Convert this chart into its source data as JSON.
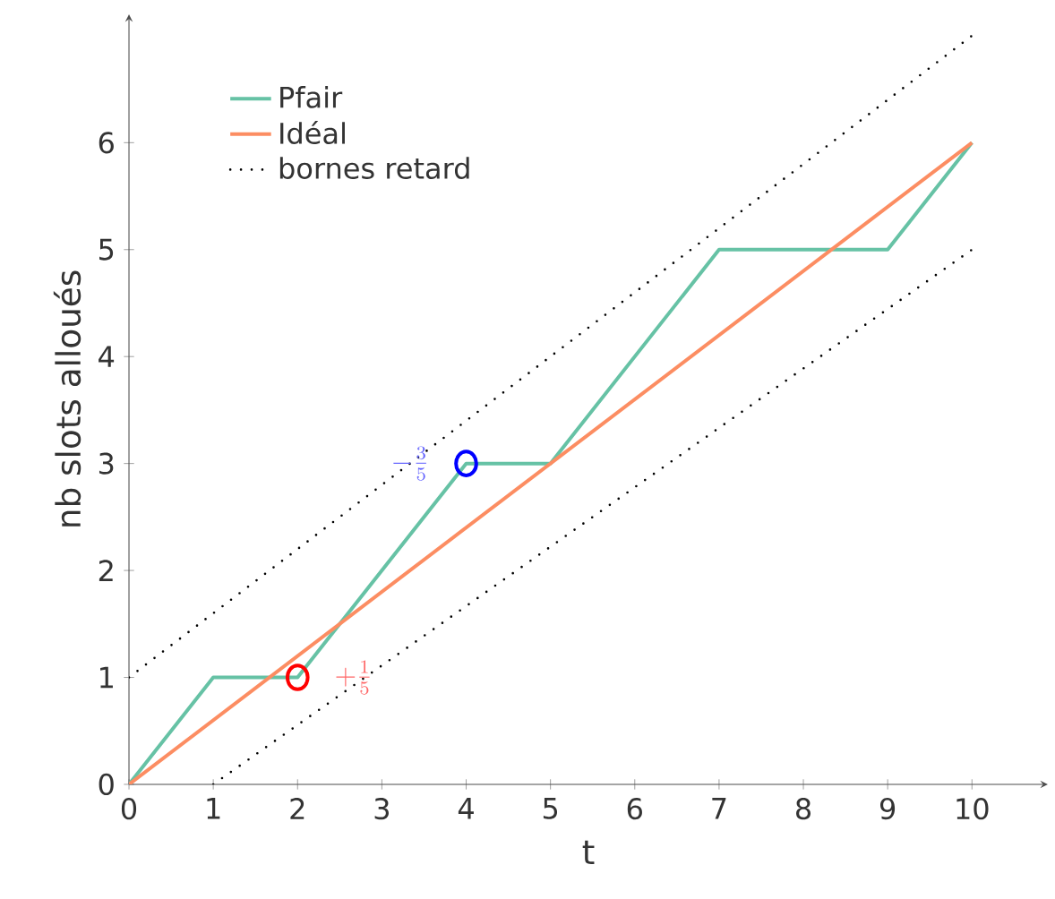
{
  "chart_data": {
    "type": "line",
    "xlabel": "t",
    "ylabel": "nb slots alloués",
    "xlim": [
      0,
      10.9
    ],
    "ylim": [
      0,
      7.2
    ],
    "xticks": [
      0,
      1,
      2,
      3,
      4,
      5,
      6,
      7,
      8,
      9,
      10
    ],
    "yticks": [
      0,
      1,
      2,
      3,
      4,
      5,
      6
    ],
    "grid": false,
    "legend": "top left",
    "series": [
      {
        "name": "Pfair",
        "color": "#66c2a5",
        "line_style": "solid",
        "x": [
          0,
          1,
          2,
          4,
          5,
          7,
          9,
          10
        ],
        "values": [
          0,
          1,
          1,
          3,
          3,
          5,
          5,
          6
        ]
      },
      {
        "name": "Idéal",
        "color": "#fc8d62",
        "line_style": "solid",
        "x": [
          0,
          10
        ],
        "values": [
          0,
          6
        ]
      },
      {
        "name": "bornes retard",
        "color": "#000000",
        "line_style": "dotted",
        "x": [
          0,
          10
        ],
        "values": [
          1,
          7
        ]
      },
      {
        "color": "#000000",
        "line_style": "dotted",
        "x": [
          1,
          10
        ],
        "values": [
          0,
          5
        ]
      },
      {
        "type": "scatter",
        "marker": "circle",
        "color": "#ff0000",
        "x": [
          2
        ],
        "values": [
          1
        ]
      },
      {
        "type": "scatter",
        "marker": "circle",
        "color": "#0000ff",
        "x": [
          4
        ],
        "values": [
          3
        ]
      }
    ],
    "annotations": [
      {
        "text": "+\\frac{1}{5}",
        "x": 2,
        "y": 1
      },
      {
        "text": "-\\frac{3}{5}",
        "x": 4,
        "y": 3
      }
    ]
  }
}
